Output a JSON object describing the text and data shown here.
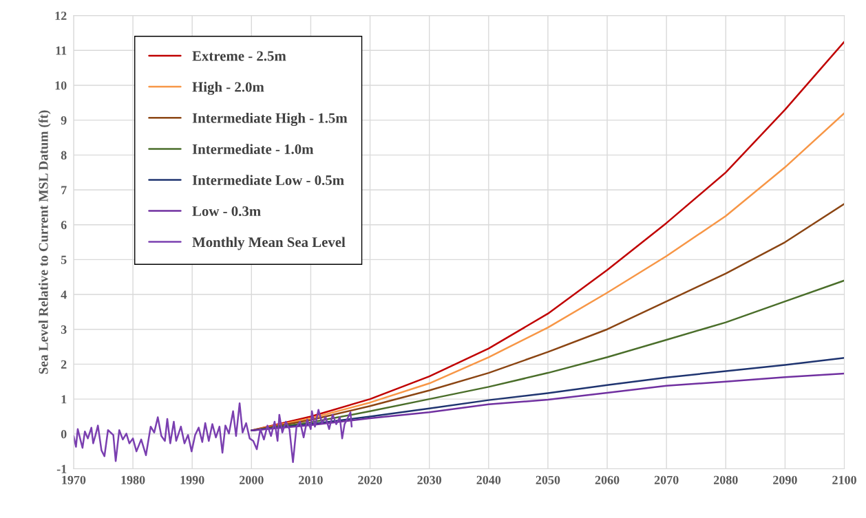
{
  "chart_data": {
    "type": "line",
    "ylabel": "Sea Level Relative to Current MSL Datum (ft)",
    "xlim": [
      1970,
      2100
    ],
    "xticks": [
      1970,
      1980,
      1990,
      2000,
      2010,
      2020,
      2030,
      2040,
      2050,
      2060,
      2070,
      2080,
      2090,
      2100
    ],
    "ylim": [
      -1,
      12
    ],
    "yticks": [
      -1,
      0,
      1,
      2,
      3,
      4,
      5,
      6,
      7,
      8,
      9,
      10,
      11,
      12
    ],
    "grid": true,
    "legend": "top left",
    "marker": "none",
    "line_style": "solid",
    "series": [
      {
        "name": "Extreme - 2.5m",
        "color": "#c00000",
        "x": [
          2000,
          2010,
          2020,
          2030,
          2040,
          2050,
          2060,
          2070,
          2080,
          2090,
          2100
        ],
        "values": [
          0.1,
          0.5,
          1.0,
          1.65,
          2.45,
          3.45,
          4.7,
          6.05,
          7.5,
          9.3,
          11.25
        ]
      },
      {
        "name": "High - 2.0m",
        "color": "#f79646",
        "x": [
          2000,
          2010,
          2020,
          2030,
          2040,
          2050,
          2060,
          2070,
          2080,
          2090,
          2100
        ],
        "values": [
          0.1,
          0.45,
          0.9,
          1.45,
          2.2,
          3.05,
          4.05,
          5.1,
          6.25,
          7.65,
          9.2
        ]
      },
      {
        "name": "Intermediate High - 1.5m",
        "color": "#8b4513",
        "x": [
          2000,
          2010,
          2020,
          2030,
          2040,
          2050,
          2060,
          2070,
          2080,
          2090,
          2100
        ],
        "values": [
          0.1,
          0.4,
          0.8,
          1.25,
          1.75,
          2.35,
          3.0,
          3.8,
          4.6,
          5.5,
          6.6
        ]
      },
      {
        "name": "Intermediate - 1.0m",
        "color": "#4a6e2a",
        "x": [
          2000,
          2010,
          2020,
          2030,
          2040,
          2050,
          2060,
          2070,
          2080,
          2090,
          2100
        ],
        "values": [
          0.1,
          0.33,
          0.65,
          1.0,
          1.35,
          1.75,
          2.2,
          2.7,
          3.2,
          3.8,
          4.4
        ]
      },
      {
        "name": "Intermediate Low - 0.5m",
        "color": "#1f3470",
        "x": [
          2000,
          2010,
          2020,
          2030,
          2040,
          2050,
          2060,
          2070,
          2080,
          2090,
          2100
        ],
        "values": [
          0.1,
          0.28,
          0.5,
          0.73,
          0.97,
          1.17,
          1.4,
          1.62,
          1.8,
          1.98,
          2.18
        ]
      },
      {
        "name": "Low - 0.3m",
        "color": "#7030a0",
        "x": [
          2000,
          2010,
          2020,
          2030,
          2040,
          2050,
          2060,
          2070,
          2080,
          2090,
          2100
        ],
        "values": [
          0.1,
          0.25,
          0.45,
          0.62,
          0.85,
          0.98,
          1.18,
          1.38,
          1.5,
          1.63,
          1.73
        ]
      },
      {
        "name": "Monthly Mean Sea Level",
        "color": "#7a3fb0",
        "x": [
          1970.0,
          1970.4,
          1970.7,
          1971.2,
          1971.5,
          1971.9,
          1972.4,
          1973.0,
          1973.3,
          1973.7,
          1974.1,
          1974.7,
          1975.2,
          1975.8,
          1976.7,
          1977.1,
          1977.7,
          1978.3,
          1978.9,
          1979.4,
          1980.0,
          1980.6,
          1981.4,
          1982.2,
          1983.0,
          1983.6,
          1984.2,
          1984.8,
          1985.4,
          1985.8,
          1986.3,
          1986.9,
          1987.3,
          1988.1,
          1988.7,
          1989.3,
          1989.9,
          1990.5,
          1991.1,
          1991.7,
          1992.2,
          1992.8,
          1993.4,
          1994.0,
          1994.6,
          1995.1,
          1995.6,
          1996.2,
          1996.9,
          1997.4,
          1998.0,
          1998.5,
          1999.1,
          1999.7,
          2000.3,
          2000.9,
          2001.5,
          2002.1,
          2002.7,
          2003.3,
          2003.9,
          2004.4,
          2004.7,
          2005.2,
          2005.8,
          2006.4,
          2007.0,
          2007.6,
          2008.2,
          2008.8,
          2009.4,
          2010.0,
          2010.2,
          2010.7,
          2011.3,
          2011.9,
          2012.5,
          2013.1,
          2013.7,
          2014.3,
          2014.9,
          2015.3,
          2015.7,
          2016.3,
          2016.7,
          2016.9
        ],
        "values": [
          -0.06,
          -0.37,
          0.14,
          -0.2,
          -0.4,
          0.07,
          -0.13,
          0.18,
          -0.27,
          -0.03,
          0.24,
          -0.47,
          -0.64,
          0.11,
          -0.03,
          -0.78,
          0.11,
          -0.16,
          0.01,
          -0.27,
          -0.13,
          -0.5,
          -0.16,
          -0.61,
          0.21,
          0.04,
          0.48,
          -0.06,
          -0.2,
          0.43,
          -0.27,
          0.35,
          -0.2,
          0.21,
          -0.27,
          -0.03,
          -0.5,
          -0.03,
          0.18,
          -0.23,
          0.31,
          -0.2,
          0.28,
          -0.1,
          0.21,
          -0.54,
          0.24,
          0.01,
          0.65,
          -0.06,
          0.88,
          0.04,
          0.31,
          -0.13,
          -0.2,
          -0.44,
          0.14,
          -0.16,
          0.24,
          -0.06,
          0.35,
          -0.2,
          0.55,
          0.04,
          0.35,
          0.14,
          -0.81,
          0.21,
          0.35,
          -0.1,
          0.41,
          0.14,
          0.65,
          0.21,
          0.69,
          0.31,
          0.48,
          0.14,
          0.55,
          0.28,
          0.48,
          -0.13,
          0.28,
          0.48,
          0.62,
          0.21
        ]
      }
    ]
  }
}
